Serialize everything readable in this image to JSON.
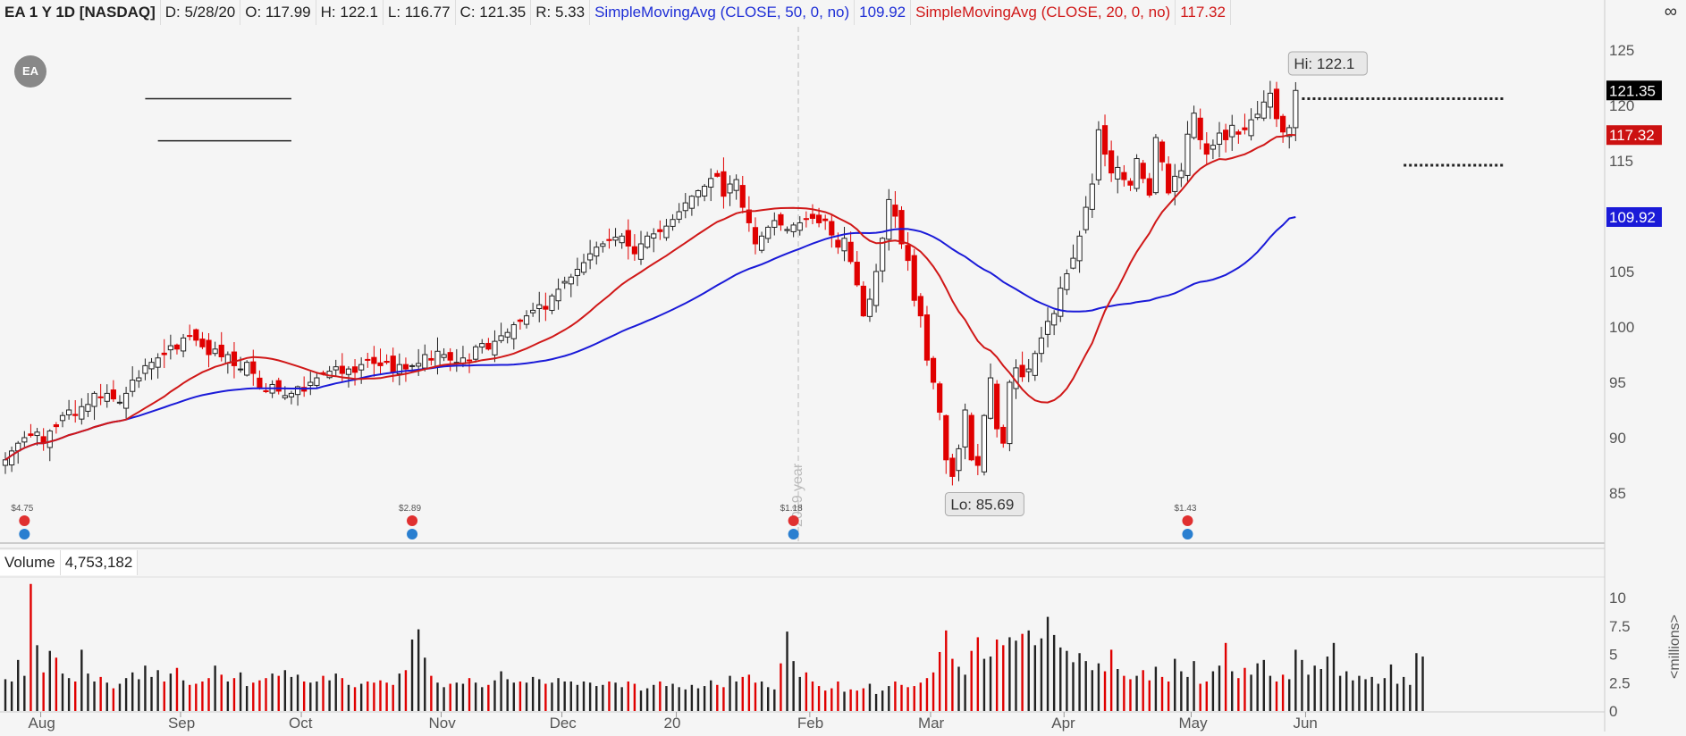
{
  "header": {
    "symbol": "EA 1 Y 1D [NASDAQ]",
    "date": "D: 5/28/20",
    "open": "O: 117.99",
    "high": "H: 122.1",
    "low": "L: 116.77",
    "close": "C: 121.35",
    "range": "R: 5.33",
    "sma50_label": "SimpleMovingAvg (CLOSE, 50, 0, no)",
    "sma50_value": "109.92",
    "sma20_label": "SimpleMovingAvg (CLOSE, 20, 0, no)",
    "sma20_value": "117.32"
  },
  "volume_header": {
    "label": "Volume",
    "value": "4,753,182"
  },
  "logo_text": "EA",
  "colors": {
    "up": "#222222",
    "down": "#e00000",
    "sma50": "#1a1ad8",
    "sma20": "#d01818",
    "background": "#f5f5f5"
  },
  "icons": {
    "corner": "draw-tool-icon"
  },
  "chart_data": [
    {
      "type": "candlestick",
      "price_ticks": [
        125,
        120,
        115,
        110,
        105,
        100,
        95,
        90,
        85
      ],
      "ylim": [
        81,
        127
      ],
      "x_labels": [
        "Aug",
        "Sep",
        "Oct",
        "Nov",
        "Dec",
        "20",
        "Feb",
        "Mar",
        "Apr",
        "May",
        "Jun"
      ],
      "year_marker": "2019 year",
      "price_flags": [
        {
          "label": "121.35",
          "kind": "last"
        },
        {
          "label": "117.32",
          "kind": "sma20"
        },
        {
          "label": "109.92",
          "kind": "sma50"
        }
      ],
      "annotations": {
        "high": "Hi: 122.1",
        "low": "Lo: 85.69"
      },
      "dividends": [
        {
          "label": "$4.75",
          "idx": 3
        },
        {
          "label": "$2.89",
          "idx": 64
        },
        {
          "label": "$1.18",
          "idx": 124
        },
        {
          "label": "$1.43",
          "idx": 186
        }
      ],
      "closes": [
        88,
        88.8,
        89.5,
        90,
        90.2,
        90.5,
        89.5,
        90.6,
        91,
        92,
        92.5,
        92,
        92.8,
        93,
        94,
        93.6,
        94,
        93.5,
        93.2,
        94,
        95.2,
        95.4,
        96.5,
        96.8,
        97.2,
        97.5,
        98.3,
        98,
        99,
        99.2,
        98.8,
        98.2,
        97.5,
        98,
        97.3,
        97.5,
        96.5,
        96.2,
        96.8,
        95.8,
        94.5,
        94.2,
        94.8,
        94.2,
        93.8,
        94,
        94.6,
        94.2,
        95,
        95.4,
        95.8,
        96,
        96.4,
        95.8,
        96.2,
        95.9,
        96.6,
        97,
        96.7,
        96.5,
        96.8,
        95.9,
        96.6,
        96.2,
        96.5,
        96.7,
        97.5,
        97,
        97.8,
        97.5,
        97,
        96.8,
        97.2,
        97,
        98.2,
        98.5,
        98,
        98.7,
        99.2,
        99.5,
        100.2,
        100.5,
        101,
        101.5,
        102,
        101.6,
        102.8,
        103.4,
        104.1,
        104.5,
        105.2,
        105.8,
        106.6,
        107.2,
        107.5,
        107.8,
        108.1,
        108.2,
        107.3,
        106.6,
        107.5,
        108.2,
        108.4,
        108.6,
        109.1,
        109.7,
        110.4,
        111.2,
        111.8,
        112.3,
        112.7,
        113.4,
        113.6,
        111.8,
        112.9,
        113.3,
        110.8,
        109.4,
        107.5,
        108.2,
        109,
        109.6,
        109.2,
        108.8,
        109.2,
        109.4,
        109.7,
        109.8,
        109.4,
        109.6,
        108.3,
        107.2,
        108,
        105.9,
        103.8,
        101,
        102.5,
        105,
        108,
        111.5,
        110,
        107.5,
        106,
        102.4,
        101,
        97,
        95,
        92.3,
        88,
        86.5,
        89,
        92.5,
        88,
        87.5,
        92,
        95.4,
        90.8,
        89.5,
        95,
        96.3,
        95.5,
        96.2,
        97.6,
        99,
        100.5,
        101.2,
        103.5,
        104.8,
        106.2,
        108.2,
        110.8,
        112.9,
        117.8,
        115.6,
        113.9,
        114.4,
        113.3,
        112.8,
        115.2,
        113.4,
        111.9,
        117.1,
        114.9,
        112.1,
        113.6,
        114.1,
        117.4,
        119.3,
        116.9,
        115.6,
        116.4,
        117.5,
        116.9,
        118.2,
        117.4,
        117.8,
        118.7,
        119.2,
        120.3,
        121.1,
        118.8,
        117.6,
        117.99,
        121.35
      ],
      "high": 122.1,
      "low": 85.69,
      "resistance_lines": [
        [
          120.6,
          22,
          45
        ],
        [
          116.8,
          24,
          45
        ],
        [
          120.6,
          204,
          236
        ],
        [
          114.6,
          220,
          236
        ]
      ]
    },
    {
      "type": "bar",
      "name": "Volume",
      "unit_label": "<millions>",
      "ticks": [
        "10",
        "7.5",
        "5",
        "2.5",
        "0"
      ],
      "tick_values": [
        10,
        7.5,
        5,
        2.5,
        0
      ],
      "ylim": [
        0,
        12
      ],
      "values": [
        2.8,
        2.6,
        4.5,
        3.1,
        11.2,
        5.8,
        3.4,
        5.3,
        4.7,
        3.3,
        2.9,
        2.6,
        5.4,
        3.3,
        2.6,
        3.0,
        2.5,
        2.0,
        2.4,
        2.9,
        3.4,
        2.8,
        4.0,
        3.0,
        3.6,
        2.6,
        3.3,
        3.8,
        2.7,
        2.3,
        2.4,
        2.6,
        2.9,
        4.0,
        3.2,
        2.6,
        2.9,
        3.4,
        2.2,
        2.5,
        2.7,
        2.9,
        3.3,
        3.1,
        3.6,
        3.0,
        3.2,
        2.6,
        2.5,
        2.6,
        3.1,
        2.7,
        3.3,
        2.9,
        2.3,
        2.1,
        2.4,
        2.6,
        2.5,
        2.7,
        2.5,
        2.3,
        3.3,
        3.6,
        6.3,
        7.2,
        4.7,
        3.1,
        2.5,
        2.1,
        2.4,
        2.5,
        2.4,
        2.9,
        2.5,
        2.1,
        2.3,
        2.7,
        3.5,
        2.8,
        2.5,
        2.6,
        2.5,
        3.0,
        2.8,
        2.4,
        2.5,
        2.9,
        2.6,
        2.6,
        2.3,
        2.6,
        2.5,
        2.2,
        2.3,
        2.6,
        2.5,
        2.1,
        2.6,
        2.4,
        1.8,
        2.0,
        2.3,
        2.6,
        2.2,
        2.4,
        2.1,
        1.9,
        2.3,
        2.0,
        2.2,
        2.7,
        2.3,
        2.1,
        3.1,
        2.6,
        3.0,
        3.2,
        2.5,
        2.6,
        2.1,
        1.9,
        4.2,
        7.0,
        4.4,
        3.0,
        3.4,
        2.6,
        2.2,
        1.8,
        2.0,
        2.6,
        1.7,
        1.9,
        1.8,
        2.0,
        2.4,
        1.5,
        1.8,
        2.2,
        2.6,
        2.3,
        2.1,
        2.2,
        2.5,
        2.9,
        3.4,
        5.2,
        7.1,
        4.6,
        3.9,
        3.2,
        5.3,
        6.5,
        4.6,
        4.8,
        6.3,
        5.8,
        6.5,
        6.2,
        6.8,
        7.1,
        5.8,
        6.4,
        8.3,
        6.7,
        5.6,
        5.3,
        4.3,
        5.1,
        4.4,
        3.6,
        4.2,
        3.5,
        5.4,
        3.7,
        3.1,
        2.8,
        3.1,
        3.6,
        2.7,
        3.9,
        3.0,
        2.6,
        4.6,
        3.5,
        3.0,
        4.4,
        2.4,
        2.6,
        3.5,
        4.0,
        6.0,
        3.5,
        2.9,
        3.8,
        3.2,
        4.2,
        4.5,
        3.1,
        2.6,
        3.2,
        2.8,
        5.4,
        4.5,
        3.2,
        4.0,
        3.7,
        4.8,
        6.0,
        3.1,
        3.5,
        2.7,
        3.1,
        2.8,
        3.0,
        2.4,
        2.9,
        4.1,
        2.4,
        3.0,
        2.3,
        5.1,
        4.8
      ]
    }
  ]
}
